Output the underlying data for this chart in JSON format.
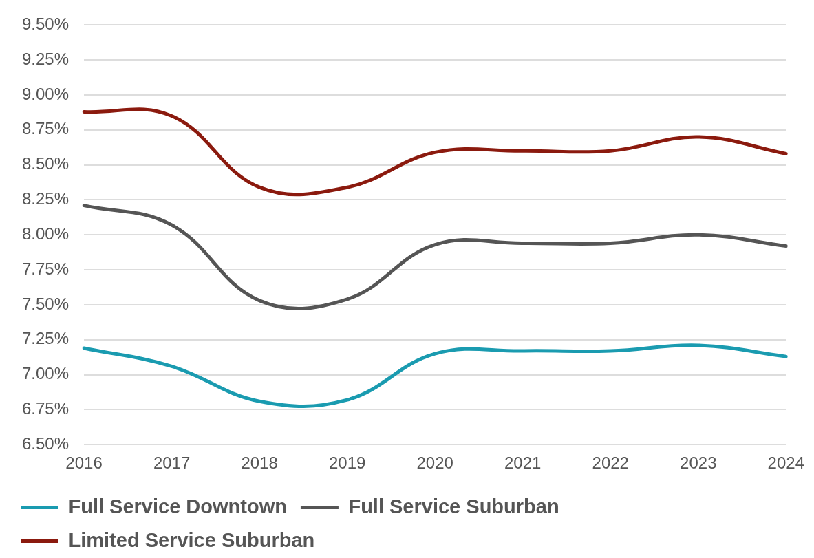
{
  "chart_data": {
    "type": "line",
    "categories": [
      "2016",
      "2017",
      "2018",
      "2019",
      "2020",
      "2021",
      "2022",
      "2023",
      "2024"
    ],
    "series": [
      {
        "name": "Full Service Downtown",
        "color": "#1a9bb0",
        "values": [
          7.19,
          7.06,
          6.81,
          6.82,
          7.15,
          7.17,
          7.17,
          7.21,
          7.13
        ]
      },
      {
        "name": "Full Service Suburban",
        "color": "#555555",
        "values": [
          8.21,
          8.07,
          7.53,
          7.54,
          7.93,
          7.94,
          7.94,
          8.0,
          7.92
        ]
      },
      {
        "name": "Limited Service Suburban",
        "color": "#8b1a0e",
        "values": [
          8.88,
          8.85,
          8.34,
          8.34,
          8.59,
          8.6,
          8.6,
          8.7,
          8.58
        ]
      }
    ],
    "ylim": [
      6.5,
      9.5
    ],
    "yticks": [
      {
        "value": 6.5,
        "label": "6.50%"
      },
      {
        "value": 6.75,
        "label": "6.75%"
      },
      {
        "value": 7.0,
        "label": "7.00%"
      },
      {
        "value": 7.25,
        "label": "7.25%"
      },
      {
        "value": 7.5,
        "label": "7.50%"
      },
      {
        "value": 7.75,
        "label": "7.75%"
      },
      {
        "value": 8.0,
        "label": "8.00%"
      },
      {
        "value": 8.25,
        "label": "8.25%"
      },
      {
        "value": 8.5,
        "label": "8.50%"
      },
      {
        "value": 8.75,
        "label": "8.75%"
      },
      {
        "value": 9.0,
        "label": "9.00%"
      },
      {
        "value": 9.25,
        "label": "9.25%"
      },
      {
        "value": 9.5,
        "label": "9.50%"
      }
    ],
    "grid": "y",
    "legend": "bottom",
    "marker": "none",
    "line_style": "solid"
  }
}
